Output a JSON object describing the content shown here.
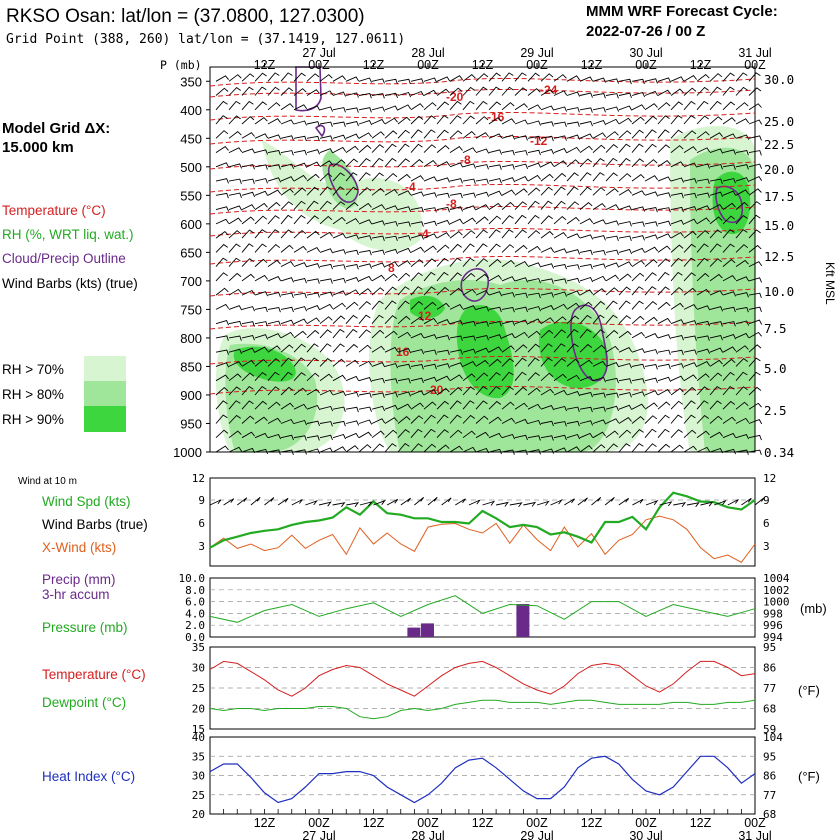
{
  "header": {
    "title": "RKSO Osan:  lat/lon = (37.0800, 127.0300)",
    "subtitle": "Grid Point (388, 260) lat/lon = (37.1419, 127.0611)",
    "cycle_line1": "MMM WRF Forecast Cycle:",
    "cycle_line2": "2022-07-26 / 00  Z",
    "grid_line1": "Model Grid ΔX:",
    "grid_line2": " 15.000 km"
  },
  "colors": {
    "temperature": "#d41f1f",
    "rh": "#22aa22",
    "cloud": "#6a2a8a",
    "pressure": "#22aa22",
    "xwind": "#e06020",
    "heat_index": "#1f2fbf",
    "rh70": "#d7f5d0",
    "rh80": "#9fe59a",
    "rh90": "#3ed63e"
  },
  "time_axis": {
    "labels": [
      "12Z",
      "00Z",
      "12Z",
      "00Z",
      "12Z",
      "00Z",
      "12Z",
      "00Z",
      "12Z",
      "00Z"
    ],
    "dates": [
      "27 Jul",
      "28 Jul",
      "29 Jul",
      "30 Jul",
      "31 Jul"
    ]
  },
  "sounding": {
    "p_label": "P (mb)",
    "pressure_labels": [
      "350",
      "400",
      "450",
      "500",
      "550",
      "600",
      "650",
      "700",
      "750",
      "800",
      "850",
      "900",
      "950",
      "1000"
    ],
    "height_labels": [
      "30.0",
      "25.0",
      "22.5",
      "20.0",
      "17.5",
      "15.0",
      "12.5",
      "10.0",
      "7.5",
      "5.0",
      "2.5",
      "0.34"
    ],
    "height_axis_title": "Kft MSL",
    "legend": {
      "temperature": "Temperature (°C)",
      "rh": "RH (%, WRT liq. wat.)",
      "cloud": "Cloud/Precip Outline",
      "barbs": "Wind Barbs (kts) (true)",
      "rh70": "RH > 70%",
      "rh80": "RH > 80%",
      "rh90": "RH > 90%"
    },
    "isotherm_labels": [
      "-24",
      "-20",
      "-16",
      "-12",
      "-8",
      "-4",
      "-8",
      "-4",
      "8",
      "12",
      "16",
      "20"
    ]
  },
  "panels": {
    "wind": {
      "header": "Wind at 10 m",
      "spd_label": "Wind Spd (kts)",
      "barb_label": "Wind Barbs (true)",
      "xwind_label": "X-Wind (kts)",
      "y_ticks": [
        "12",
        "9",
        "6",
        "3"
      ]
    },
    "precip": {
      "precip_label": "Precip (mm)",
      "accum_label": "3-hr accum",
      "pressure_label": "Pressure (mb)",
      "left_ticks": [
        "10.0",
        "8.0",
        "6.0",
        "4.0",
        "2.0",
        "0.0"
      ],
      "right_ticks": [
        "1004",
        "1002",
        "1000",
        "998",
        "996",
        "994"
      ],
      "right_unit": "(mb)"
    },
    "temp": {
      "temp_label": "Temperature (°C)",
      "dew_label": "Dewpoint (°C)",
      "left_ticks": [
        "35",
        "30",
        "25",
        "20",
        "15"
      ],
      "right_ticks": [
        "95",
        "86",
        "77",
        "68",
        "59"
      ],
      "right_unit": "(°F)"
    },
    "heat": {
      "label": "Heat Index (°C)",
      "left_ticks": [
        "40",
        "35",
        "30",
        "25",
        "20"
      ],
      "right_ticks": [
        "104",
        "95",
        "86",
        "77",
        "68"
      ],
      "right_unit": "(°F)"
    }
  },
  "chart_data": [
    {
      "type": "line",
      "title": "Wind at 10 m",
      "x_unit": "hours since 2022-07-26 00Z (3-hourly)",
      "x": [
        0,
        3,
        6,
        9,
        12,
        15,
        18,
        21,
        24,
        27,
        30,
        33,
        36,
        39,
        42,
        45,
        48,
        51,
        54,
        57,
        60,
        63,
        66,
        69,
        72,
        75,
        78,
        81,
        84,
        87,
        90,
        93,
        96,
        99,
        102,
        105,
        108,
        111,
        114,
        117,
        120
      ],
      "ylim": [
        0,
        12
      ],
      "series": [
        {
          "name": "Wind Spd (kts)",
          "values": [
            2.5,
            3.5,
            4.0,
            4.5,
            4.8,
            5.0,
            5.6,
            6.0,
            6.2,
            6.6,
            8.0,
            7.0,
            8.8,
            7.2,
            7.0,
            6.5,
            6.5,
            6.0,
            6.0,
            5.8,
            7.5,
            6.5,
            5.3,
            5.6,
            5.3,
            4.3,
            4.6,
            4.0,
            3.2,
            6.0,
            6.0,
            6.7,
            5.0,
            8.0,
            10.0,
            9.5,
            8.8,
            8.7,
            8.0,
            7.7,
            9.0
          ]
        },
        {
          "name": "X-Wind (kts)",
          "values": [
            2.5,
            3.8,
            2.4,
            3.0,
            2.1,
            2.5,
            4.2,
            2.4,
            3.5,
            4.3,
            1.6,
            5.2,
            3.0,
            4.5,
            3.0,
            2.0,
            5.3,
            5.7,
            5.8,
            5.0,
            4.5,
            5.8,
            3.1,
            5.6,
            3.6,
            2.1,
            5.3,
            2.6,
            4.4,
            1.6,
            3.5,
            4.3,
            6.3,
            6.8,
            6.3,
            5.0,
            2.5,
            1.0,
            1.5,
            0.5,
            3.0
          ]
        }
      ]
    },
    {
      "type": "bar",
      "title": "Precip (mm) 3-hr accum",
      "categories": [
        45,
        48,
        69
      ],
      "values": [
        1.6,
        2.3,
        5.6
      ],
      "ylim": [
        0,
        10
      ]
    },
    {
      "type": "line",
      "title": "Pressure (mb)",
      "x": [
        0,
        6,
        12,
        18,
        24,
        30,
        36,
        42,
        48,
        54,
        60,
        66,
        72,
        78,
        84,
        90,
        96,
        102,
        108,
        114,
        120
      ],
      "ylim": [
        994,
        1004
      ],
      "series": [
        {
          "name": "Pressure (mb)",
          "values": [
            997.5,
            996.5,
            998.5,
            999.5,
            997.5,
            998.8,
            999.8,
            997.5,
            999.5,
            1001,
            998,
            999.5,
            999.3,
            997,
            1000,
            1000,
            997.5,
            999.5,
            998.5,
            997.5,
            998.8
          ]
        }
      ]
    },
    {
      "type": "line",
      "title": "Temperature / Dewpoint (°C)",
      "x": [
        0,
        3,
        6,
        9,
        12,
        15,
        18,
        21,
        24,
        27,
        30,
        33,
        36,
        39,
        42,
        45,
        48,
        51,
        54,
        57,
        60,
        63,
        66,
        69,
        72,
        75,
        78,
        81,
        84,
        87,
        90,
        93,
        96,
        99,
        102,
        105,
        108,
        111,
        114,
        117,
        120
      ],
      "ylim": [
        15,
        35
      ],
      "series": [
        {
          "name": "Temperature (°C)",
          "values": [
            29.5,
            31.5,
            31,
            29,
            27,
            24.5,
            23,
            25,
            28,
            29.5,
            30.5,
            30,
            28,
            26,
            24.5,
            23,
            25.5,
            28,
            30,
            31,
            31.5,
            30,
            28,
            26,
            24.5,
            23.5,
            25.5,
            28.5,
            30.5,
            31,
            30.5,
            28,
            25.5,
            24,
            26,
            29,
            31.5,
            31.5,
            30,
            28,
            28.5
          ]
        },
        {
          "name": "Dewpoint (°C)",
          "values": [
            20,
            19.5,
            20,
            20,
            19.5,
            20,
            20,
            20,
            20.5,
            20.5,
            20,
            18,
            17.5,
            18,
            19.5,
            20,
            19.5,
            20,
            21,
            21.5,
            22,
            22,
            21.5,
            21.5,
            21.5,
            21,
            21.5,
            22,
            22,
            21.5,
            21,
            21,
            21,
            21,
            21.5,
            21.5,
            21,
            21,
            21.5,
            21.5,
            22
          ]
        }
      ]
    },
    {
      "type": "line",
      "title": "Heat Index (°C)",
      "x": [
        0,
        3,
        6,
        9,
        12,
        15,
        18,
        21,
        24,
        27,
        30,
        33,
        36,
        39,
        42,
        45,
        48,
        51,
        54,
        57,
        60,
        63,
        66,
        69,
        72,
        75,
        78,
        81,
        84,
        87,
        90,
        93,
        96,
        99,
        102,
        105,
        108,
        111,
        114,
        117,
        120
      ],
      "ylim": [
        20,
        40
      ],
      "series": [
        {
          "name": "Heat Index (°C)",
          "values": [
            31,
            33,
            33,
            29.5,
            25.5,
            23,
            24,
            27,
            30.5,
            30.5,
            31,
            31,
            30,
            27,
            25,
            23,
            25,
            28,
            32,
            34,
            34.5,
            32,
            29,
            26,
            24,
            24,
            27,
            32,
            34.5,
            35,
            33,
            29,
            26,
            25,
            27,
            31,
            35,
            35,
            32,
            28,
            30.5
          ]
        }
      ]
    }
  ]
}
